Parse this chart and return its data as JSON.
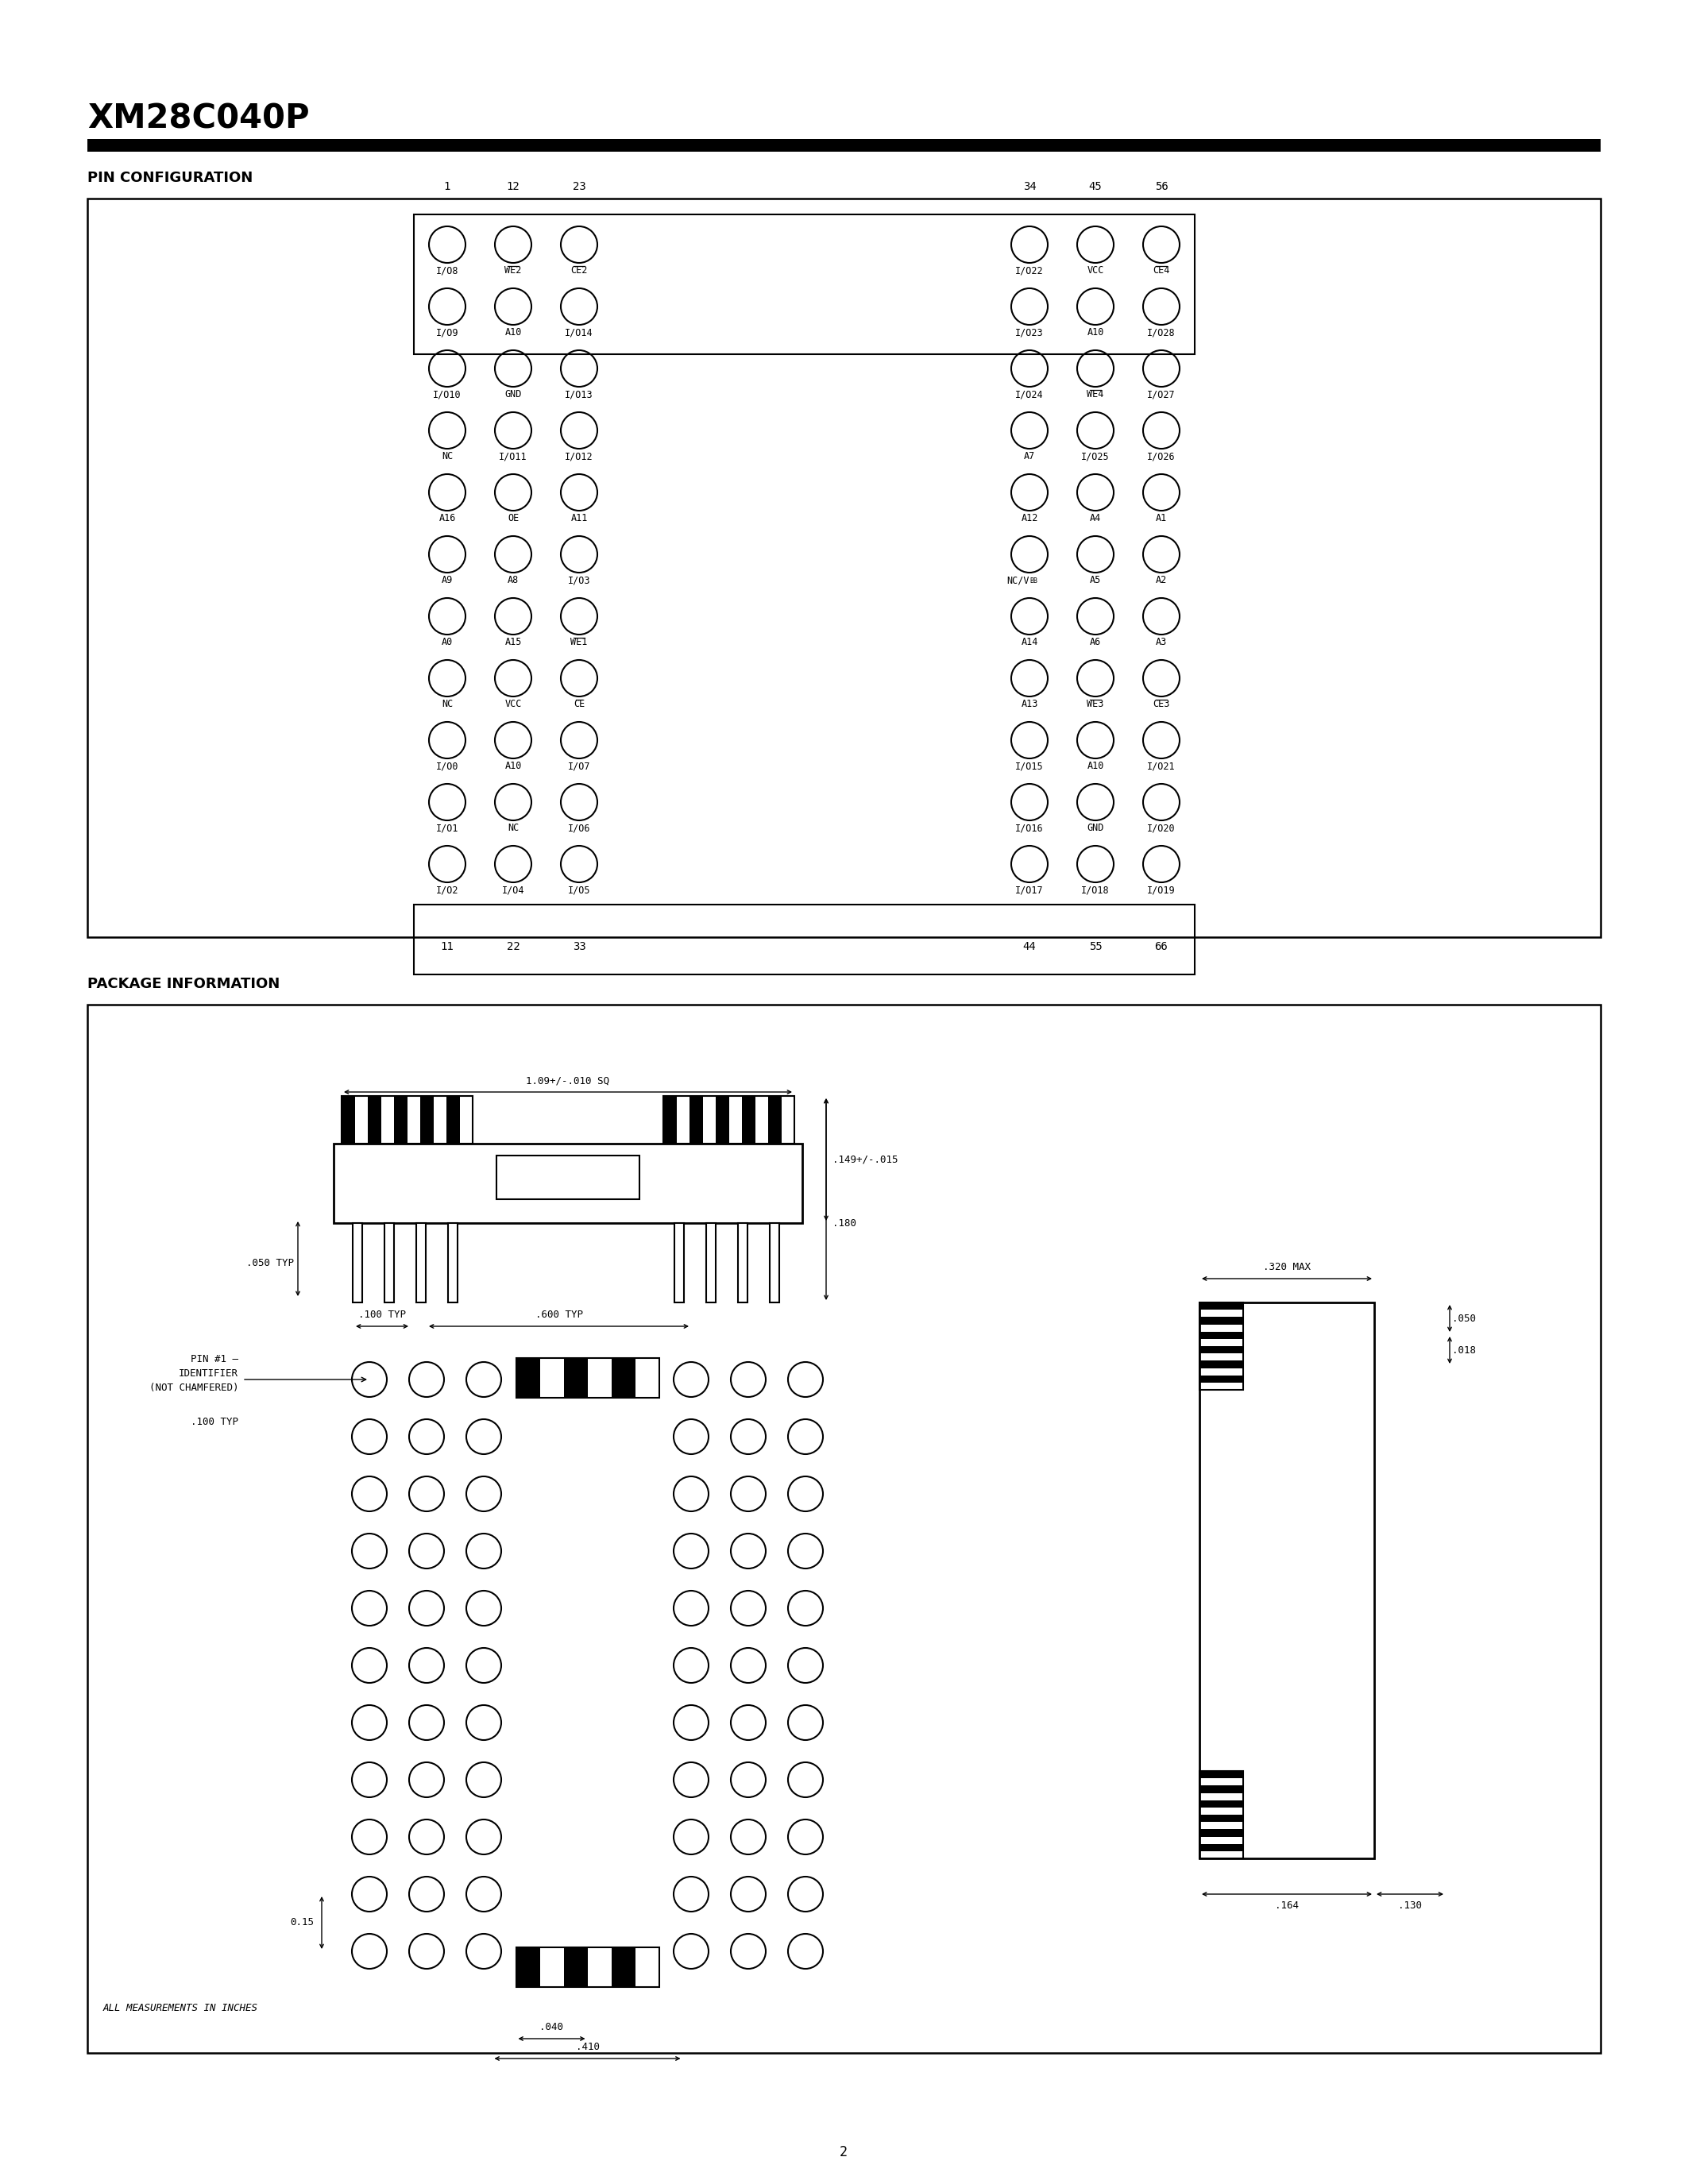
{
  "title": "XM28C040P",
  "section1": "PIN CONFIGURATION",
  "section2": "PACKAGE INFORMATION",
  "page_number": "2",
  "left_pins": [
    [
      "I/O8",
      "WE2",
      "CE2"
    ],
    [
      "I/O9",
      "A10",
      "I/O14"
    ],
    [
      "I/O10",
      "GND",
      "I/O13"
    ],
    [
      "NC",
      "I/O11",
      "I/O12"
    ],
    [
      "A16",
      "OE",
      "A11"
    ],
    [
      "A9",
      "A8",
      "I/O3"
    ],
    [
      "A0",
      "A15",
      "WE1"
    ],
    [
      "NC",
      "VCC",
      "CE"
    ],
    [
      "I/O0",
      "A10",
      "I/O7"
    ],
    [
      "I/O1",
      "NC",
      "I/O6"
    ],
    [
      "I/O2",
      "I/O4",
      "I/O5"
    ]
  ],
  "right_pins": [
    [
      "I/O22",
      "VCC",
      "CE4"
    ],
    [
      "I/O23",
      "A10",
      "I/O28"
    ],
    [
      "I/O24",
      "WE4",
      "I/O27"
    ],
    [
      "A7",
      "I/O25",
      "I/O26"
    ],
    [
      "A12",
      "A4",
      "A1"
    ],
    [
      "NC/VBB",
      "A5",
      "A2"
    ],
    [
      "A14",
      "A6",
      "A3"
    ],
    [
      "A13",
      "WE3",
      "CE3"
    ],
    [
      "I/O15",
      "A10",
      "I/O21"
    ],
    [
      "I/O16",
      "GND",
      "I/O20"
    ],
    [
      "I/O17",
      "I/O18",
      "I/O19"
    ]
  ],
  "top_col_labels": [
    "1",
    "12",
    "23",
    "34",
    "45",
    "56"
  ],
  "bottom_col_labels": [
    "11",
    "22",
    "33",
    "44",
    "55",
    "66"
  ],
  "overline_pins": [
    "CE2",
    "CE4",
    "CE",
    "CE3",
    "WE1",
    "WE2",
    "WE3",
    "WE4"
  ]
}
